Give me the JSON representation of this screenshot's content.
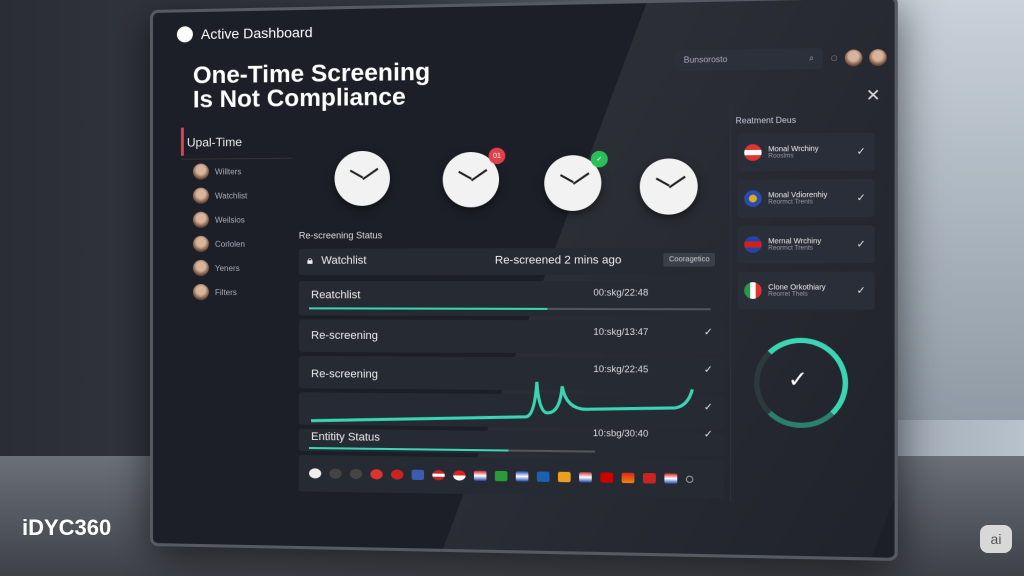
{
  "app": {
    "title": "Active Dashboard",
    "headline_line1": "One-Time Screening",
    "headline_line2": "Is Not Compliance"
  },
  "header": {
    "search_value": "Bunsorosto"
  },
  "sidebar": {
    "title": "Upal-Time",
    "items": [
      {
        "label": "Willters"
      },
      {
        "label": "Watchlist"
      },
      {
        "label": "Weilsios"
      },
      {
        "label": "Corlolen"
      },
      {
        "label": "Yeners"
      },
      {
        "label": "Filters"
      }
    ]
  },
  "clocks": [
    {
      "badge": ""
    },
    {
      "badge": "01",
      "badge_color": "#e0404a"
    },
    {
      "badge": "✓",
      "badge_color": "#2bbf5a"
    },
    {
      "badge": ""
    }
  ],
  "status": {
    "section_label": "Re-screening Status",
    "watchlist_label": "Watchlist",
    "watchlist_status": "Re-screened 2 mins ago",
    "watchlist_button": "Cooragetico",
    "rows": [
      {
        "label": "Reatchlist",
        "time": "00:skg/22:48",
        "progress": 0.6
      },
      {
        "label": "Re-screening",
        "time": "10:skg/13:47"
      },
      {
        "label": "Re-screening",
        "time": "10:skg/22:45"
      },
      {
        "label": "",
        "time": ""
      },
      {
        "label": "Entitity Status",
        "time": "10:sbg/30:40",
        "progress": 0.7
      }
    ]
  },
  "panel": {
    "title": "Reatment Deus",
    "items": [
      {
        "name": "Monal Wrchiny",
        "sub": "Rooslms",
        "flag_color": "#d33"
      },
      {
        "name": "Monal Vdiorenhiy",
        "sub": "Reormct Trents",
        "flag_color": "#2a4bb0"
      },
      {
        "name": "Mernal Wrchiny",
        "sub": "Reormct Trents",
        "flag_color": "#c22"
      },
      {
        "name": "Clone Orkothiary",
        "sub": "Reorret Thels",
        "flag_color": "#2a9a4a"
      }
    ]
  },
  "colors": {
    "accent": "#3ad6b4",
    "alert": "#e0404a"
  },
  "brand": {
    "logo": "iDYC360",
    "badge": "ai"
  }
}
